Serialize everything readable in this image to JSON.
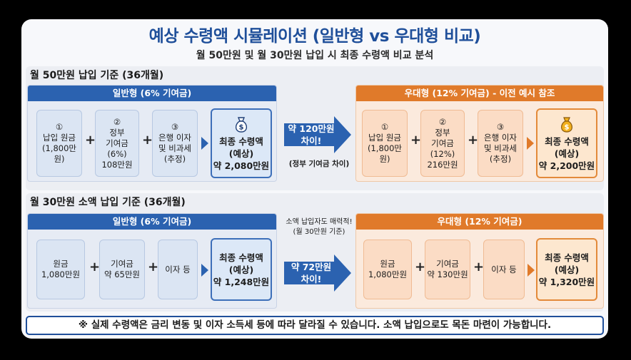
{
  "title": "예상 수령액 시뮬레이션 (일반형 vs 우대형 비교)",
  "subtitle": "월 50만원 및 월 30만원 납입 시 최종 수령액 비교 분석",
  "section1": {
    "title": "월 50만원 납입 기준 (36개월)",
    "general": {
      "header": "일반형 (6% 기여금)",
      "box1": [
        "①",
        "납입 원금",
        "(1,800만원)"
      ],
      "box2": [
        "②",
        "정부",
        "기여금",
        "(6%)",
        "108만원"
      ],
      "box3": [
        "③",
        "은행 이자",
        "및 비과세",
        "(추정)"
      ],
      "final": [
        "최종 수령액",
        "(예상)",
        "약 2,080만원"
      ]
    },
    "arrow": [
      "약 120만원",
      "차이!"
    ],
    "arrow_note": "(정부 기여금 차이)",
    "preferred": {
      "header": "우대형 (12% 기여금) - 이전 예시 참조",
      "box1": [
        "①",
        "납입 원금",
        "(1,800만원)"
      ],
      "box2": [
        "②",
        "정부",
        "기여금",
        "(12%)",
        "216만원"
      ],
      "box3": [
        "③",
        "은행 이자",
        "및 비과세",
        "(추정)"
      ],
      "final": [
        "최종 수령액",
        "(예상)",
        "약 2,200만원"
      ]
    }
  },
  "section2": {
    "title": "월 30만원 소액 납입 기준 (36개월)",
    "note": [
      "소액 납입자도 매력적!",
      "(월 30만원 기준)"
    ],
    "general": {
      "header": "일반형 (6% 기여금)",
      "box1": [
        "원금",
        "1,080만원"
      ],
      "box2": [
        "기여금",
        "약 65만원"
      ],
      "box3": [
        "이자 등"
      ],
      "final": [
        "최종 수령액",
        "(예상)",
        "약 1,248만원"
      ]
    },
    "arrow": [
      "약 72만원",
      "차이!"
    ],
    "preferred": {
      "header": "우대형 (12% 기여금)",
      "box1": [
        "원금",
        "1,080만원"
      ],
      "box2": [
        "기여금",
        "약 130만원"
      ],
      "box3": [
        "이자 등"
      ],
      "final": [
        "최종 수령액",
        "(예상)",
        "약 1,320만원"
      ]
    }
  },
  "footer": "※ 실제 수령액은 금리 변동 및 이자 소득세 등에 따라 달라질 수 있습니다. 소액 납입으로도 목돈 마련이 가능합니다.",
  "icons": {
    "money_bag_general": "money-bag-icon",
    "money_bag_preferred": "money-bag-icon"
  },
  "colors": {
    "blue": "#2b62b0",
    "orange": "#e07a2a",
    "title_blue": "#1f4f9a"
  }
}
